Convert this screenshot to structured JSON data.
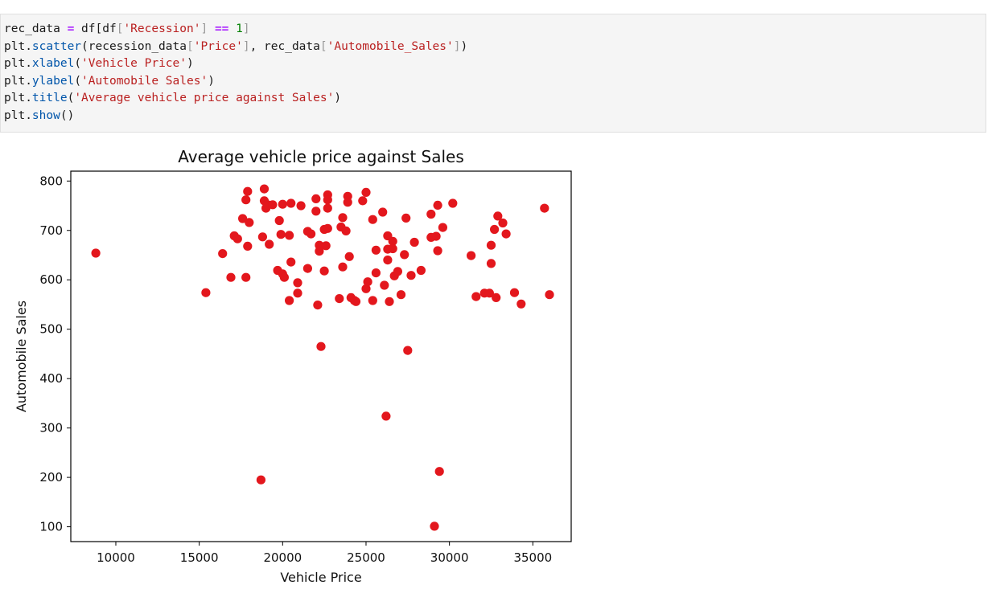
{
  "code_cell": {
    "lines": [
      [
        {
          "t": "rec_data ",
          "c": "plain"
        },
        {
          "t": "=",
          "c": "op"
        },
        {
          "t": " df",
          "c": "plain"
        },
        {
          "t": "[",
          "c": "plain"
        },
        {
          "t": "df",
          "c": "plain"
        },
        {
          "t": "[",
          "c": "br"
        },
        {
          "t": "'Recession'",
          "c": "str"
        },
        {
          "t": "]",
          "c": "br"
        },
        {
          "t": " ",
          "c": "plain"
        },
        {
          "t": "==",
          "c": "op"
        },
        {
          "t": " ",
          "c": "plain"
        },
        {
          "t": "1",
          "c": "num"
        },
        {
          "t": "]",
          "c": "br"
        }
      ],
      [
        {
          "t": "plt.",
          "c": "plain"
        },
        {
          "t": "scatter",
          "c": "fn"
        },
        {
          "t": "(recession_data",
          "c": "plain"
        },
        {
          "t": "[",
          "c": "br"
        },
        {
          "t": "'Price'",
          "c": "str"
        },
        {
          "t": "]",
          "c": "br"
        },
        {
          "t": ", rec_data",
          "c": "plain"
        },
        {
          "t": "[",
          "c": "br"
        },
        {
          "t": "'Automobile_Sales'",
          "c": "str"
        },
        {
          "t": "]",
          "c": "br"
        },
        {
          "t": ")",
          "c": "plain"
        }
      ],
      [
        {
          "t": "plt.",
          "c": "plain"
        },
        {
          "t": "xlabel",
          "c": "fn"
        },
        {
          "t": "(",
          "c": "plain"
        },
        {
          "t": "'Vehicle Price'",
          "c": "str"
        },
        {
          "t": ")",
          "c": "plain"
        }
      ],
      [
        {
          "t": "plt.",
          "c": "plain"
        },
        {
          "t": "ylabel",
          "c": "fn"
        },
        {
          "t": "(",
          "c": "plain"
        },
        {
          "t": "'Automobile Sales'",
          "c": "str"
        },
        {
          "t": ")",
          "c": "plain"
        }
      ],
      [
        {
          "t": "plt.",
          "c": "plain"
        },
        {
          "t": "title",
          "c": "fn"
        },
        {
          "t": "(",
          "c": "plain"
        },
        {
          "t": "'Average vehicle price against Sales'",
          "c": "str"
        },
        {
          "t": ")",
          "c": "plain"
        }
      ],
      [
        {
          "t": "plt.",
          "c": "plain"
        },
        {
          "t": "show",
          "c": "fn"
        },
        {
          "t": "()",
          "c": "plain"
        }
      ]
    ],
    "colors": {
      "op": "#aa22ff",
      "str": "#ba2121",
      "num": "#008000",
      "fn": "#0055aa",
      "br": "#999999",
      "plain": "#1a1a1a",
      "background": "#f5f5f5"
    }
  },
  "chart_data": {
    "type": "scatter",
    "title": "Average vehicle price against Sales",
    "xlabel": "Vehicle Price",
    "ylabel": "Automobile Sales",
    "xlim": [
      7300,
      37300
    ],
    "ylim": [
      70,
      820
    ],
    "xticks": [
      10000,
      15000,
      20000,
      25000,
      30000,
      35000
    ],
    "yticks": [
      100,
      200,
      300,
      400,
      500,
      600,
      700,
      800
    ],
    "grid": false,
    "marker_color": "#e3171d",
    "points": [
      {
        "x": 8800,
        "y": 654
      },
      {
        "x": 15400,
        "y": 574
      },
      {
        "x": 16400,
        "y": 653
      },
      {
        "x": 16900,
        "y": 605
      },
      {
        "x": 17100,
        "y": 689
      },
      {
        "x": 17300,
        "y": 683
      },
      {
        "x": 17600,
        "y": 724
      },
      {
        "x": 17800,
        "y": 762
      },
      {
        "x": 17800,
        "y": 605
      },
      {
        "x": 17900,
        "y": 779
      },
      {
        "x": 17900,
        "y": 668
      },
      {
        "x": 18000,
        "y": 716
      },
      {
        "x": 18700,
        "y": 195
      },
      {
        "x": 18800,
        "y": 687
      },
      {
        "x": 18900,
        "y": 784
      },
      {
        "x": 18900,
        "y": 760
      },
      {
        "x": 19000,
        "y": 745
      },
      {
        "x": 19100,
        "y": 752
      },
      {
        "x": 19200,
        "y": 672
      },
      {
        "x": 19400,
        "y": 752
      },
      {
        "x": 19800,
        "y": 720
      },
      {
        "x": 19700,
        "y": 619
      },
      {
        "x": 19900,
        "y": 692
      },
      {
        "x": 20000,
        "y": 753
      },
      {
        "x": 20000,
        "y": 612
      },
      {
        "x": 20100,
        "y": 605
      },
      {
        "x": 20400,
        "y": 690
      },
      {
        "x": 20500,
        "y": 755
      },
      {
        "x": 20500,
        "y": 636
      },
      {
        "x": 20400,
        "y": 558
      },
      {
        "x": 20900,
        "y": 594
      },
      {
        "x": 20900,
        "y": 573
      },
      {
        "x": 21100,
        "y": 750
      },
      {
        "x": 21500,
        "y": 698
      },
      {
        "x": 21500,
        "y": 623
      },
      {
        "x": 21700,
        "y": 693
      },
      {
        "x": 22000,
        "y": 764
      },
      {
        "x": 22000,
        "y": 739
      },
      {
        "x": 22100,
        "y": 549
      },
      {
        "x": 22200,
        "y": 670
      },
      {
        "x": 22200,
        "y": 658
      },
      {
        "x": 22300,
        "y": 465
      },
      {
        "x": 22500,
        "y": 702
      },
      {
        "x": 22500,
        "y": 618
      },
      {
        "x": 22700,
        "y": 772
      },
      {
        "x": 22700,
        "y": 762
      },
      {
        "x": 22700,
        "y": 745
      },
      {
        "x": 22700,
        "y": 704
      },
      {
        "x": 22600,
        "y": 669
      },
      {
        "x": 23400,
        "y": 562
      },
      {
        "x": 23500,
        "y": 707
      },
      {
        "x": 23600,
        "y": 726
      },
      {
        "x": 23600,
        "y": 626
      },
      {
        "x": 23800,
        "y": 699
      },
      {
        "x": 23900,
        "y": 769
      },
      {
        "x": 23900,
        "y": 757
      },
      {
        "x": 24000,
        "y": 647
      },
      {
        "x": 24100,
        "y": 564
      },
      {
        "x": 24300,
        "y": 558
      },
      {
        "x": 24400,
        "y": 556
      },
      {
        "x": 24800,
        "y": 760
      },
      {
        "x": 25000,
        "y": 777
      },
      {
        "x": 25000,
        "y": 582
      },
      {
        "x": 25100,
        "y": 596
      },
      {
        "x": 25400,
        "y": 722
      },
      {
        "x": 25400,
        "y": 558
      },
      {
        "x": 25600,
        "y": 660
      },
      {
        "x": 25600,
        "y": 614
      },
      {
        "x": 26000,
        "y": 737
      },
      {
        "x": 26100,
        "y": 589
      },
      {
        "x": 26200,
        "y": 324
      },
      {
        "x": 26300,
        "y": 689
      },
      {
        "x": 26300,
        "y": 662
      },
      {
        "x": 26300,
        "y": 640
      },
      {
        "x": 26400,
        "y": 556
      },
      {
        "x": 26600,
        "y": 678
      },
      {
        "x": 26600,
        "y": 663
      },
      {
        "x": 26700,
        "y": 608
      },
      {
        "x": 26900,
        "y": 617
      },
      {
        "x": 27100,
        "y": 570
      },
      {
        "x": 27300,
        "y": 651
      },
      {
        "x": 27400,
        "y": 725
      },
      {
        "x": 27500,
        "y": 457
      },
      {
        "x": 27700,
        "y": 609
      },
      {
        "x": 27900,
        "y": 676
      },
      {
        "x": 28300,
        "y": 619
      },
      {
        "x": 28900,
        "y": 733
      },
      {
        "x": 28900,
        "y": 686
      },
      {
        "x": 29100,
        "y": 101
      },
      {
        "x": 29200,
        "y": 688
      },
      {
        "x": 29300,
        "y": 751
      },
      {
        "x": 29300,
        "y": 659
      },
      {
        "x": 29400,
        "y": 212
      },
      {
        "x": 29600,
        "y": 706
      },
      {
        "x": 30200,
        "y": 755
      },
      {
        "x": 31300,
        "y": 649
      },
      {
        "x": 31600,
        "y": 566
      },
      {
        "x": 32100,
        "y": 573
      },
      {
        "x": 32400,
        "y": 573
      },
      {
        "x": 32500,
        "y": 670
      },
      {
        "x": 32500,
        "y": 633
      },
      {
        "x": 32700,
        "y": 702
      },
      {
        "x": 32800,
        "y": 564
      },
      {
        "x": 32900,
        "y": 729
      },
      {
        "x": 33200,
        "y": 715
      },
      {
        "x": 33400,
        "y": 693
      },
      {
        "x": 33900,
        "y": 574
      },
      {
        "x": 34300,
        "y": 551
      },
      {
        "x": 35700,
        "y": 745
      },
      {
        "x": 36000,
        "y": 570
      }
    ]
  }
}
